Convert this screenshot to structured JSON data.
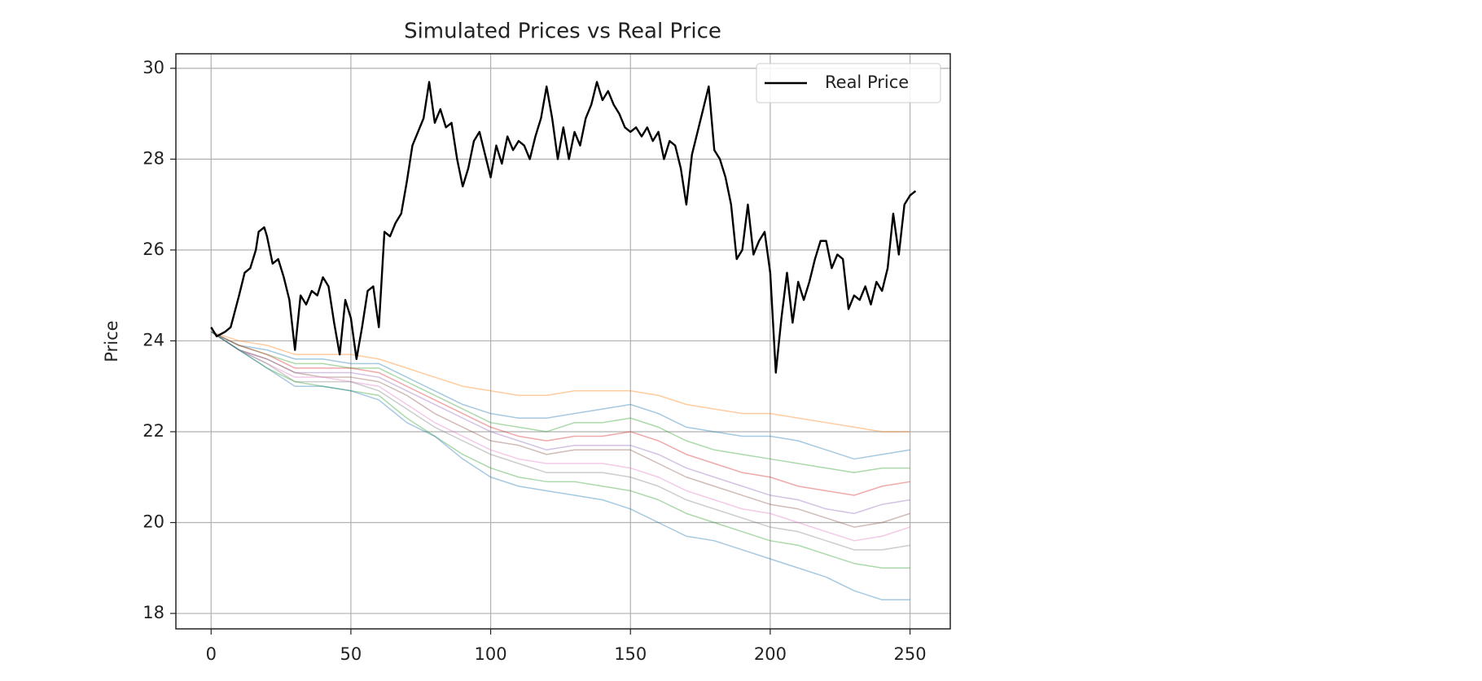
{
  "chart_data": {
    "type": "line",
    "title": "Simulated Prices vs Real Price",
    "y_label": "Price",
    "xlim": [
      -12.6,
      264.4
    ],
    "ylim": [
      17.66,
      30.32
    ],
    "xticks": [
      0,
      50,
      100,
      150,
      200,
      250
    ],
    "yticks": [
      18,
      20,
      22,
      24,
      26,
      28,
      30
    ],
    "grid": true,
    "legend": "upper right",
    "simulated_alpha": 0.4,
    "series": [
      {
        "color": "#ff7f0e",
        "x": [
          0,
          10,
          20,
          30,
          40,
          50,
          60,
          70,
          80,
          90,
          100,
          110,
          120,
          130,
          140,
          150,
          160,
          170,
          180,
          190,
          200,
          210,
          220,
          230,
          240,
          250
        ],
        "values": [
          24.2,
          24.0,
          23.9,
          23.7,
          23.7,
          23.7,
          23.6,
          23.4,
          23.2,
          23.0,
          22.9,
          22.8,
          22.8,
          22.9,
          22.9,
          22.9,
          22.8,
          22.6,
          22.5,
          22.4,
          22.4,
          22.3,
          22.2,
          22.1,
          22.0,
          22.0
        ]
      },
      {
        "color": "#1f77b4",
        "x": [
          0,
          10,
          20,
          30,
          40,
          50,
          60,
          70,
          80,
          90,
          100,
          110,
          120,
          130,
          140,
          150,
          160,
          170,
          180,
          190,
          200,
          210,
          220,
          230,
          240,
          250
        ],
        "values": [
          24.2,
          23.9,
          23.8,
          23.6,
          23.6,
          23.5,
          23.5,
          23.2,
          22.9,
          22.6,
          22.4,
          22.3,
          22.3,
          22.4,
          22.5,
          22.6,
          22.4,
          22.1,
          22.0,
          21.9,
          21.9,
          21.8,
          21.6,
          21.4,
          21.5,
          21.6
        ]
      },
      {
        "color": "#2ca02c",
        "x": [
          0,
          10,
          20,
          30,
          40,
          50,
          60,
          70,
          80,
          90,
          100,
          110,
          120,
          130,
          140,
          150,
          160,
          170,
          180,
          190,
          200,
          210,
          220,
          230,
          240,
          250
        ],
        "values": [
          24.2,
          23.9,
          23.7,
          23.5,
          23.5,
          23.4,
          23.4,
          23.1,
          22.8,
          22.5,
          22.2,
          22.1,
          22.0,
          22.2,
          22.2,
          22.3,
          22.1,
          21.8,
          21.6,
          21.5,
          21.4,
          21.3,
          21.2,
          21.1,
          21.2,
          21.2
        ]
      },
      {
        "color": "#d62728",
        "x": [
          0,
          10,
          20,
          30,
          40,
          50,
          60,
          70,
          80,
          90,
          100,
          110,
          120,
          130,
          140,
          150,
          160,
          170,
          180,
          190,
          200,
          210,
          220,
          230,
          240,
          250
        ],
        "values": [
          24.2,
          23.9,
          23.7,
          23.4,
          23.4,
          23.4,
          23.3,
          23.0,
          22.7,
          22.4,
          22.1,
          21.9,
          21.8,
          21.9,
          21.9,
          22.0,
          21.8,
          21.5,
          21.3,
          21.1,
          21.0,
          20.8,
          20.7,
          20.6,
          20.8,
          20.9
        ]
      },
      {
        "color": "#9467bd",
        "x": [
          0,
          10,
          20,
          30,
          40,
          50,
          60,
          70,
          80,
          90,
          100,
          110,
          120,
          130,
          140,
          150,
          160,
          170,
          180,
          190,
          200,
          210,
          220,
          230,
          240,
          250
        ],
        "values": [
          24.2,
          23.8,
          23.6,
          23.3,
          23.3,
          23.3,
          23.2,
          22.9,
          22.6,
          22.3,
          22.0,
          21.8,
          21.6,
          21.7,
          21.7,
          21.7,
          21.5,
          21.2,
          21.0,
          20.8,
          20.6,
          20.5,
          20.3,
          20.2,
          20.4,
          20.5
        ]
      },
      {
        "color": "#8c564b",
        "x": [
          0,
          10,
          20,
          30,
          40,
          50,
          60,
          70,
          80,
          90,
          100,
          110,
          120,
          130,
          140,
          150,
          160,
          170,
          180,
          190,
          200,
          210,
          220,
          230,
          240,
          250
        ],
        "values": [
          24.2,
          23.8,
          23.6,
          23.3,
          23.2,
          23.2,
          23.1,
          22.8,
          22.4,
          22.1,
          21.8,
          21.7,
          21.5,
          21.6,
          21.6,
          21.6,
          21.3,
          21.0,
          20.8,
          20.6,
          20.4,
          20.3,
          20.1,
          19.9,
          20.0,
          20.2
        ]
      },
      {
        "color": "#e377c2",
        "x": [
          0,
          10,
          20,
          30,
          40,
          50,
          60,
          70,
          80,
          90,
          100,
          110,
          120,
          130,
          140,
          150,
          160,
          170,
          180,
          190,
          200,
          210,
          220,
          230,
          240,
          250
        ],
        "values": [
          24.2,
          23.8,
          23.5,
          23.2,
          23.2,
          23.1,
          23.0,
          22.6,
          22.2,
          21.9,
          21.6,
          21.4,
          21.3,
          21.3,
          21.3,
          21.2,
          21.0,
          20.7,
          20.5,
          20.3,
          20.2,
          20.0,
          19.8,
          19.6,
          19.7,
          19.9
        ]
      },
      {
        "color": "#7f7f7f",
        "x": [
          0,
          10,
          20,
          30,
          40,
          50,
          60,
          70,
          80,
          90,
          100,
          110,
          120,
          130,
          140,
          150,
          160,
          170,
          180,
          190,
          200,
          210,
          220,
          230,
          240,
          250
        ],
        "values": [
          24.2,
          23.8,
          23.5,
          23.1,
          23.1,
          23.1,
          22.9,
          22.5,
          22.1,
          21.8,
          21.5,
          21.3,
          21.1,
          21.1,
          21.1,
          21.0,
          20.8,
          20.5,
          20.3,
          20.1,
          19.9,
          19.8,
          19.6,
          19.4,
          19.4,
          19.5
        ]
      },
      {
        "color": "#2ca02c",
        "x": [
          0,
          10,
          20,
          30,
          40,
          50,
          60,
          70,
          80,
          90,
          100,
          110,
          120,
          130,
          140,
          150,
          160,
          170,
          180,
          190,
          200,
          210,
          220,
          230,
          240,
          250
        ],
        "values": [
          24.2,
          23.8,
          23.4,
          23.1,
          23.0,
          22.9,
          22.8,
          22.3,
          21.9,
          21.5,
          21.2,
          21.0,
          20.9,
          20.9,
          20.8,
          20.7,
          20.5,
          20.2,
          20.0,
          19.8,
          19.6,
          19.5,
          19.3,
          19.1,
          19.0,
          19.0
        ]
      },
      {
        "color": "#1f77b4",
        "x": [
          0,
          10,
          20,
          30,
          40,
          50,
          60,
          70,
          80,
          90,
          100,
          110,
          120,
          130,
          140,
          150,
          160,
          170,
          180,
          190,
          200,
          210,
          220,
          230,
          240,
          250
        ],
        "values": [
          24.2,
          23.8,
          23.4,
          23.0,
          23.0,
          22.9,
          22.7,
          22.2,
          21.9,
          21.4,
          21.0,
          20.8,
          20.7,
          20.6,
          20.5,
          20.3,
          20.0,
          19.7,
          19.6,
          19.4,
          19.2,
          19.0,
          18.8,
          18.5,
          18.3,
          18.3
        ]
      },
      {
        "name": "Real Price",
        "color": "#000000",
        "x": [
          0,
          2,
          5,
          7,
          10,
          12,
          14,
          16,
          17,
          19,
          20,
          22,
          24,
          26,
          28,
          30,
          32,
          34,
          36,
          38,
          40,
          42,
          44,
          46,
          48,
          50,
          52,
          54,
          56,
          58,
          60,
          62,
          64,
          66,
          68,
          70,
          72,
          74,
          76,
          78,
          80,
          82,
          84,
          86,
          88,
          90,
          92,
          94,
          96,
          98,
          100,
          102,
          104,
          106,
          108,
          110,
          112,
          114,
          116,
          118,
          120,
          122,
          124,
          126,
          128,
          130,
          132,
          134,
          136,
          138,
          140,
          142,
          144,
          146,
          148,
          150,
          152,
          154,
          156,
          158,
          160,
          162,
          164,
          166,
          168,
          170,
          172,
          174,
          176,
          178,
          180,
          182,
          184,
          186,
          188,
          190,
          192,
          194,
          196,
          198,
          200,
          202,
          204,
          206,
          208,
          210,
          212,
          214,
          216,
          218,
          220,
          222,
          224,
          226,
          228,
          230,
          232,
          234,
          236,
          238,
          240,
          242,
          244,
          246,
          248,
          250,
          252
        ],
        "values": [
          24.3,
          24.1,
          24.2,
          24.3,
          25.0,
          25.5,
          25.6,
          26.0,
          26.4,
          26.5,
          26.3,
          25.7,
          25.8,
          25.4,
          24.9,
          23.8,
          25.0,
          24.8,
          25.1,
          25.0,
          25.4,
          25.2,
          24.4,
          23.7,
          24.9,
          24.5,
          23.6,
          24.3,
          25.1,
          25.2,
          24.3,
          26.4,
          26.3,
          26.6,
          26.8,
          27.5,
          28.3,
          28.6,
          28.9,
          29.7,
          28.8,
          29.1,
          28.7,
          28.8,
          28.0,
          27.4,
          27.8,
          28.4,
          28.6,
          28.1,
          27.6,
          28.3,
          27.9,
          28.5,
          28.2,
          28.4,
          28.3,
          28.0,
          28.5,
          28.9,
          29.6,
          28.9,
          28.0,
          28.7,
          28.0,
          28.6,
          28.3,
          28.9,
          29.2,
          29.7,
          29.3,
          29.5,
          29.2,
          29.0,
          28.7,
          28.6,
          28.7,
          28.5,
          28.7,
          28.4,
          28.6,
          28.0,
          28.4,
          28.3,
          27.8,
          27.0,
          28.1,
          28.6,
          29.1,
          29.6,
          28.2,
          28.0,
          27.6,
          27.0,
          25.8,
          26.0,
          27.0,
          25.9,
          26.2,
          26.4,
          25.5,
          23.3,
          24.5,
          25.5,
          24.4,
          25.3,
          24.9,
          25.3,
          25.8,
          26.2,
          26.2,
          25.6,
          25.9,
          25.8,
          24.7,
          25.0,
          24.9,
          25.2,
          24.8,
          25.3,
          25.1,
          25.6,
          26.8,
          25.9,
          27.0,
          27.2,
          27.3
        ]
      }
    ]
  }
}
